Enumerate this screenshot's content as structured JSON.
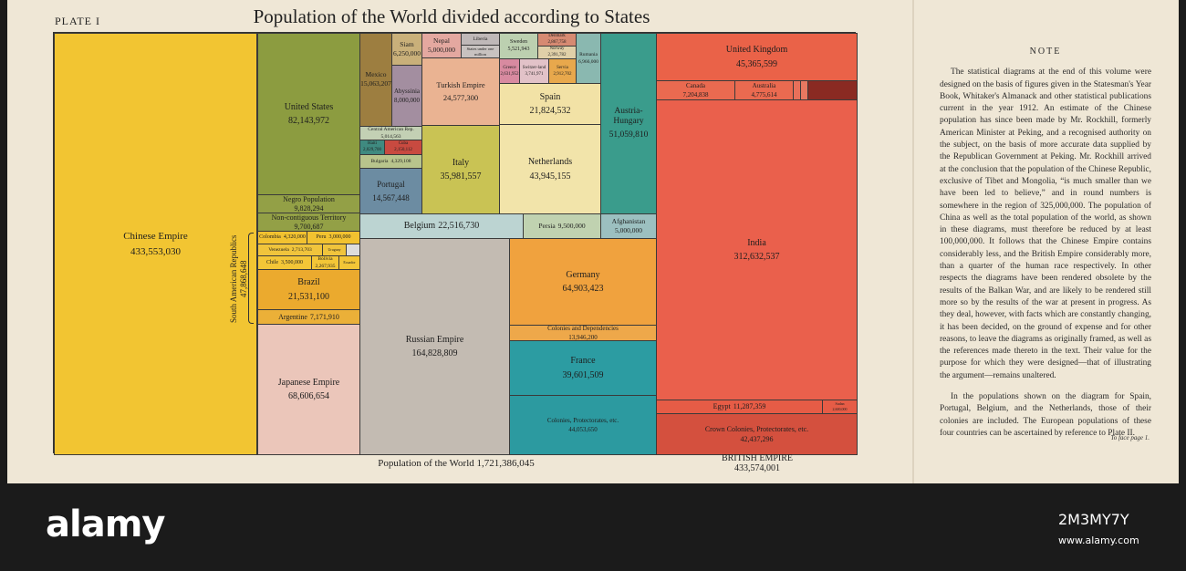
{
  "header": {
    "plate": "PLATE I",
    "title": "Population of the World divided according to States"
  },
  "tiles": [
    {
      "name": "Chinese Empire",
      "population": "433,553,030"
    },
    {
      "name": "United States",
      "population": "82,143,972"
    },
    {
      "name": "Negro Population",
      "population": "9,828,294"
    },
    {
      "name": "Non-contiguous Territory",
      "population": "9,700,687"
    },
    {
      "name": "Colombia",
      "population": "4,320,000"
    },
    {
      "name": "Peru",
      "population": "3,000,000"
    },
    {
      "name": "Venezuela",
      "population": "2,713,703"
    },
    {
      "name": "Uruguay"
    },
    {
      "name": "Chile",
      "population": "3,500,000"
    },
    {
      "name": "Bolivia",
      "population": "2,267,935"
    },
    {
      "name": "Ecuador"
    },
    {
      "name": "Brazil",
      "population": "21,531,100"
    },
    {
      "name": "Argentine",
      "population": "7,171,910"
    },
    {
      "name": "Japanese Empire",
      "population": "68,606,654"
    },
    {
      "name": "Mexico",
      "population": "15,063,207"
    },
    {
      "name": "Siam",
      "population": "6,250,000"
    },
    {
      "name": "Abyssinia",
      "population": "8,000,000"
    },
    {
      "name": "Nepal",
      "population": "5,000,000"
    },
    {
      "name": "Liberia"
    },
    {
      "name": "States under one million"
    },
    {
      "name": "Turkish Empire",
      "population": "24,577,300"
    },
    {
      "name": "Central American Rep.",
      "population": "5,014,563"
    },
    {
      "name": "Haiti",
      "population": "2,029,700"
    },
    {
      "name": "Cuba",
      "population": "2,150,112"
    },
    {
      "name": "Bulgaria",
      "population": "4,329,108"
    },
    {
      "name": "Portugal",
      "population": "14,567,448"
    },
    {
      "name": "Italy",
      "population": "35,981,557"
    },
    {
      "name": "Sweden",
      "population": "5,521,943"
    },
    {
      "name": "Denmark",
      "population": "2,867,758"
    },
    {
      "name": "Norway",
      "population": "2,391,782"
    },
    {
      "name": "Rumania",
      "population": "6,966,000"
    },
    {
      "name": "Greece",
      "population": "2,631,952"
    },
    {
      "name": "Switzer-land",
      "population": "3,741,971"
    },
    {
      "name": "Servia",
      "population": "2,912,702"
    },
    {
      "name": "Spain",
      "population": "21,824,532"
    },
    {
      "name": "Netherlands",
      "population": "43,945,155"
    },
    {
      "name": "Austria-Hungary",
      "population": "51,059,810"
    },
    {
      "name": "Belgium",
      "population": "22,516,730"
    },
    {
      "name": "Persia",
      "population": "9,500,000"
    },
    {
      "name": "Afghanistan",
      "population": "5,000,000"
    },
    {
      "name": "Russian Empire",
      "population": "164,828,809"
    },
    {
      "name": "Germany",
      "population": "64,903,423"
    },
    {
      "name": "Colonies and Dependencies",
      "population": "13,946,200"
    },
    {
      "name": "France",
      "population": "39,601,509"
    },
    {
      "name": "Colonies, Protectorates, etc.",
      "population": "44,053,650"
    },
    {
      "name": "United Kingdom",
      "population": "45,365,599"
    },
    {
      "name": "Canada",
      "population": "7,204,838"
    },
    {
      "name": "Australia",
      "population": "4,775,614"
    },
    {
      "name": "India",
      "population": "312,632,537"
    },
    {
      "name": "Egypt",
      "population": "11,287,359"
    },
    {
      "name": "Sudan",
      "population": "2,600,000"
    },
    {
      "name": "Crown Colonies, Protectorates, etc.",
      "population": "42,437,296"
    }
  ],
  "south_american": {
    "name": "South American Republics",
    "population": "47,868,648"
  },
  "footer": {
    "world": "Population of the World 1,721,386,045",
    "british_label": "BRITISH EMPIRE",
    "british_population": "433,574,001"
  },
  "note": {
    "heading": "NOTE",
    "paragraphs": [
      "The statistical diagrams at the end of this volume were designed on the basis of figures given in the Statesman's Year Book, Whitaker's Almanack and other statistical publications current in the year 1912. An estimate of the Chinese population has since been made by Mr. Rockhill, formerly American Minister at Peking, and a recognised authority on the subject, on the basis of more accurate data supplied by the Republican Government at Peking. Mr. Rockhill arrived at the conclusion that the population of the Chinese Republic, exclusive of Tibet and Mongolia, “is much smaller than we have been led to believe,” and in round numbers is somewhere in the region of 325,000,000. The population of China as well as the total population of the world, as shown in these diagrams, must therefore be reduced by at least 100,000,000. It follows that the Chinese Empire contains considerably less, and the British Empire considerably more, than a quarter of the human race respectively. In other respects the diagrams have been rendered obsolete by the results of the Balkan War, and are likely to be rendered still more so by the results of the war at present in progress. As they deal, however, with facts which are constantly changing, it has been decided, on the ground of expense and for other reasons, to leave the diagrams as originally framed, as well as the references made thereto in the text. Their value for the purpose for which they were designed—that of illustrating the argument—remains unaltered.",
      "In the populations shown on the diagram for Spain, Portugal, Belgium, and the Netherlands, those of their colonies are included. The European populations of these four countries can be ascertained by reference to Plate II."
    ],
    "caption": "To face page 1."
  },
  "watermark": {
    "brand": "alamy",
    "code": "2M3MY7Y",
    "url": "www.alamy.com"
  }
}
